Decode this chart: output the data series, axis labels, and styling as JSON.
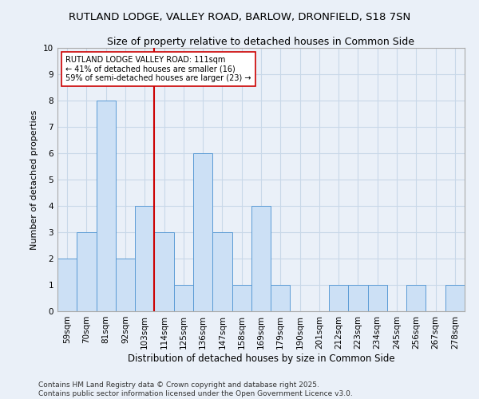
{
  "title1": "RUTLAND LODGE, VALLEY ROAD, BARLOW, DRONFIELD, S18 7SN",
  "title2": "Size of property relative to detached houses in Common Side",
  "xlabel": "Distribution of detached houses by size in Common Side",
  "ylabel": "Number of detached properties",
  "categories": [
    "59sqm",
    "70sqm",
    "81sqm",
    "92sqm",
    "103sqm",
    "114sqm",
    "125sqm",
    "136sqm",
    "147sqm",
    "158sqm",
    "169sqm",
    "179sqm",
    "190sqm",
    "201sqm",
    "212sqm",
    "223sqm",
    "234sqm",
    "245sqm",
    "256sqm",
    "267sqm",
    "278sqm"
  ],
  "values": [
    2,
    3,
    8,
    2,
    4,
    3,
    1,
    6,
    3,
    1,
    4,
    1,
    0,
    0,
    1,
    1,
    1,
    0,
    1,
    0,
    1
  ],
  "bar_color": "#cce0f5",
  "bar_edge_color": "#5b9bd5",
  "vline_x_index": 5,
  "vline_color": "#cc0000",
  "annotation_text": "RUTLAND LODGE VALLEY ROAD: 111sqm\n← 41% of detached houses are smaller (16)\n59% of semi-detached houses are larger (23) →",
  "annotation_box_color": "white",
  "annotation_box_edge": "#cc0000",
  "ylim": [
    0,
    10
  ],
  "yticks": [
    0,
    1,
    2,
    3,
    4,
    5,
    6,
    7,
    8,
    9,
    10
  ],
  "grid_color": "#c8d8e8",
  "background_color": "#eaf0f8",
  "footer1": "Contains HM Land Registry data © Crown copyright and database right 2025.",
  "footer2": "Contains public sector information licensed under the Open Government Licence v3.0.",
  "title1_fontsize": 9.5,
  "title2_fontsize": 9,
  "xlabel_fontsize": 8.5,
  "ylabel_fontsize": 8,
  "tick_fontsize": 7.5,
  "footer_fontsize": 6.5,
  "annotation_fontsize": 7
}
